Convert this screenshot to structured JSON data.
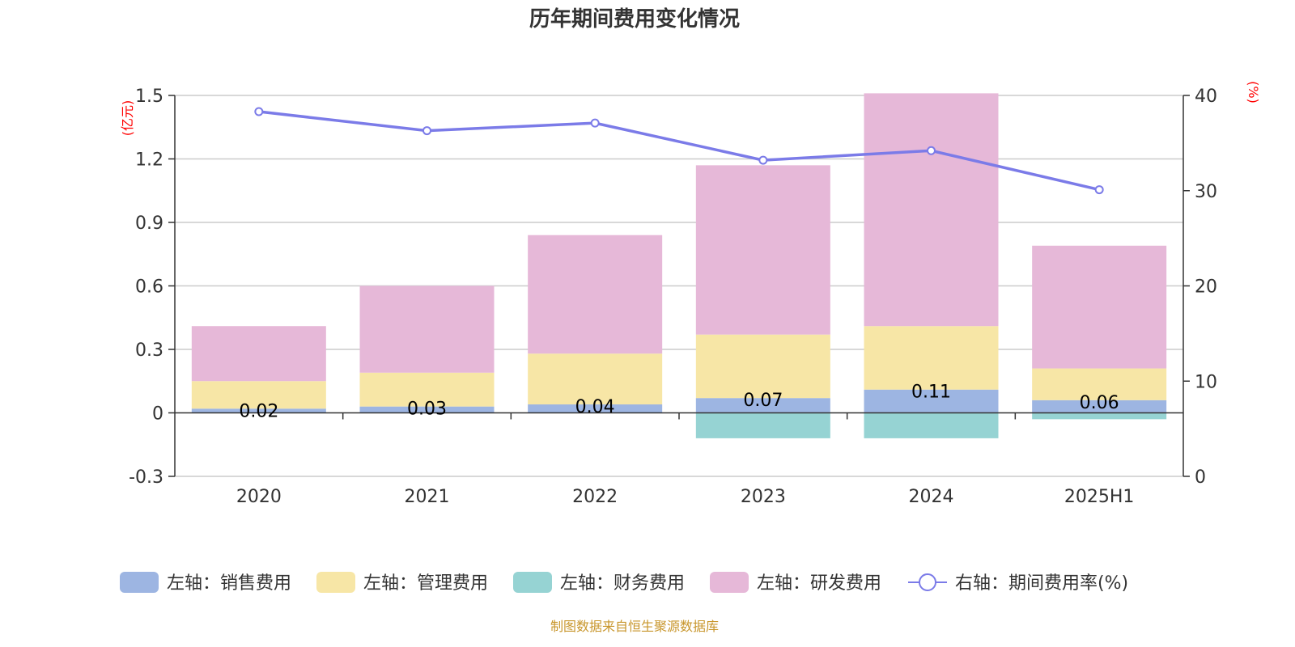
{
  "title": "历年期间费用变化情况",
  "source": "制图数据来自恒生聚源数据库",
  "colors": {
    "sales": "#9db5e2",
    "admin": "#f7e6a6",
    "finance": "#96d3d3",
    "rd": "#e6b8d8",
    "rate": "#7b7be8",
    "unit": "#ff0000",
    "source": "#c8962c"
  },
  "chart_data": {
    "type": "bar",
    "stacked": true,
    "categories": [
      "2020",
      "2021",
      "2022",
      "2023",
      "2024",
      "2025H1"
    ],
    "left_axis": {
      "unit": "(亿元)",
      "ylim": [
        -0.3,
        1.5
      ],
      "ticks": [
        "-0.3",
        "0",
        "0.3",
        "0.6",
        "0.9",
        "1.2",
        "1.5"
      ]
    },
    "right_axis": {
      "unit": "(%)",
      "ylim": [
        0,
        40
      ],
      "ticks": [
        "0",
        "10",
        "20",
        "30",
        "40"
      ]
    },
    "series": [
      {
        "name": "左轴：销售费用",
        "key": "sales",
        "values": [
          0.02,
          0.03,
          0.04,
          0.07,
          0.11,
          0.06
        ],
        "labels": [
          "0.02",
          "0.03",
          "0.04",
          "0.07",
          "0.11",
          "0.06"
        ]
      },
      {
        "name": "左轴：管理费用",
        "key": "admin",
        "values": [
          0.13,
          0.16,
          0.24,
          0.3,
          0.3,
          0.15
        ]
      },
      {
        "name": "左轴：财务费用",
        "key": "finance",
        "values": [
          0.0,
          0.0,
          0.0,
          -0.12,
          -0.12,
          -0.03
        ]
      },
      {
        "name": "左轴：研发费用",
        "key": "rd",
        "values": [
          0.26,
          0.41,
          0.56,
          0.8,
          1.1,
          0.58
        ]
      },
      {
        "name": "右轴：期间费用率(%)",
        "key": "rate",
        "type": "line",
        "axis": "right",
        "values": [
          38.3,
          36.3,
          37.1,
          33.2,
          34.2,
          30.1
        ]
      }
    ],
    "grid": true,
    "legend_position": "bottom"
  }
}
